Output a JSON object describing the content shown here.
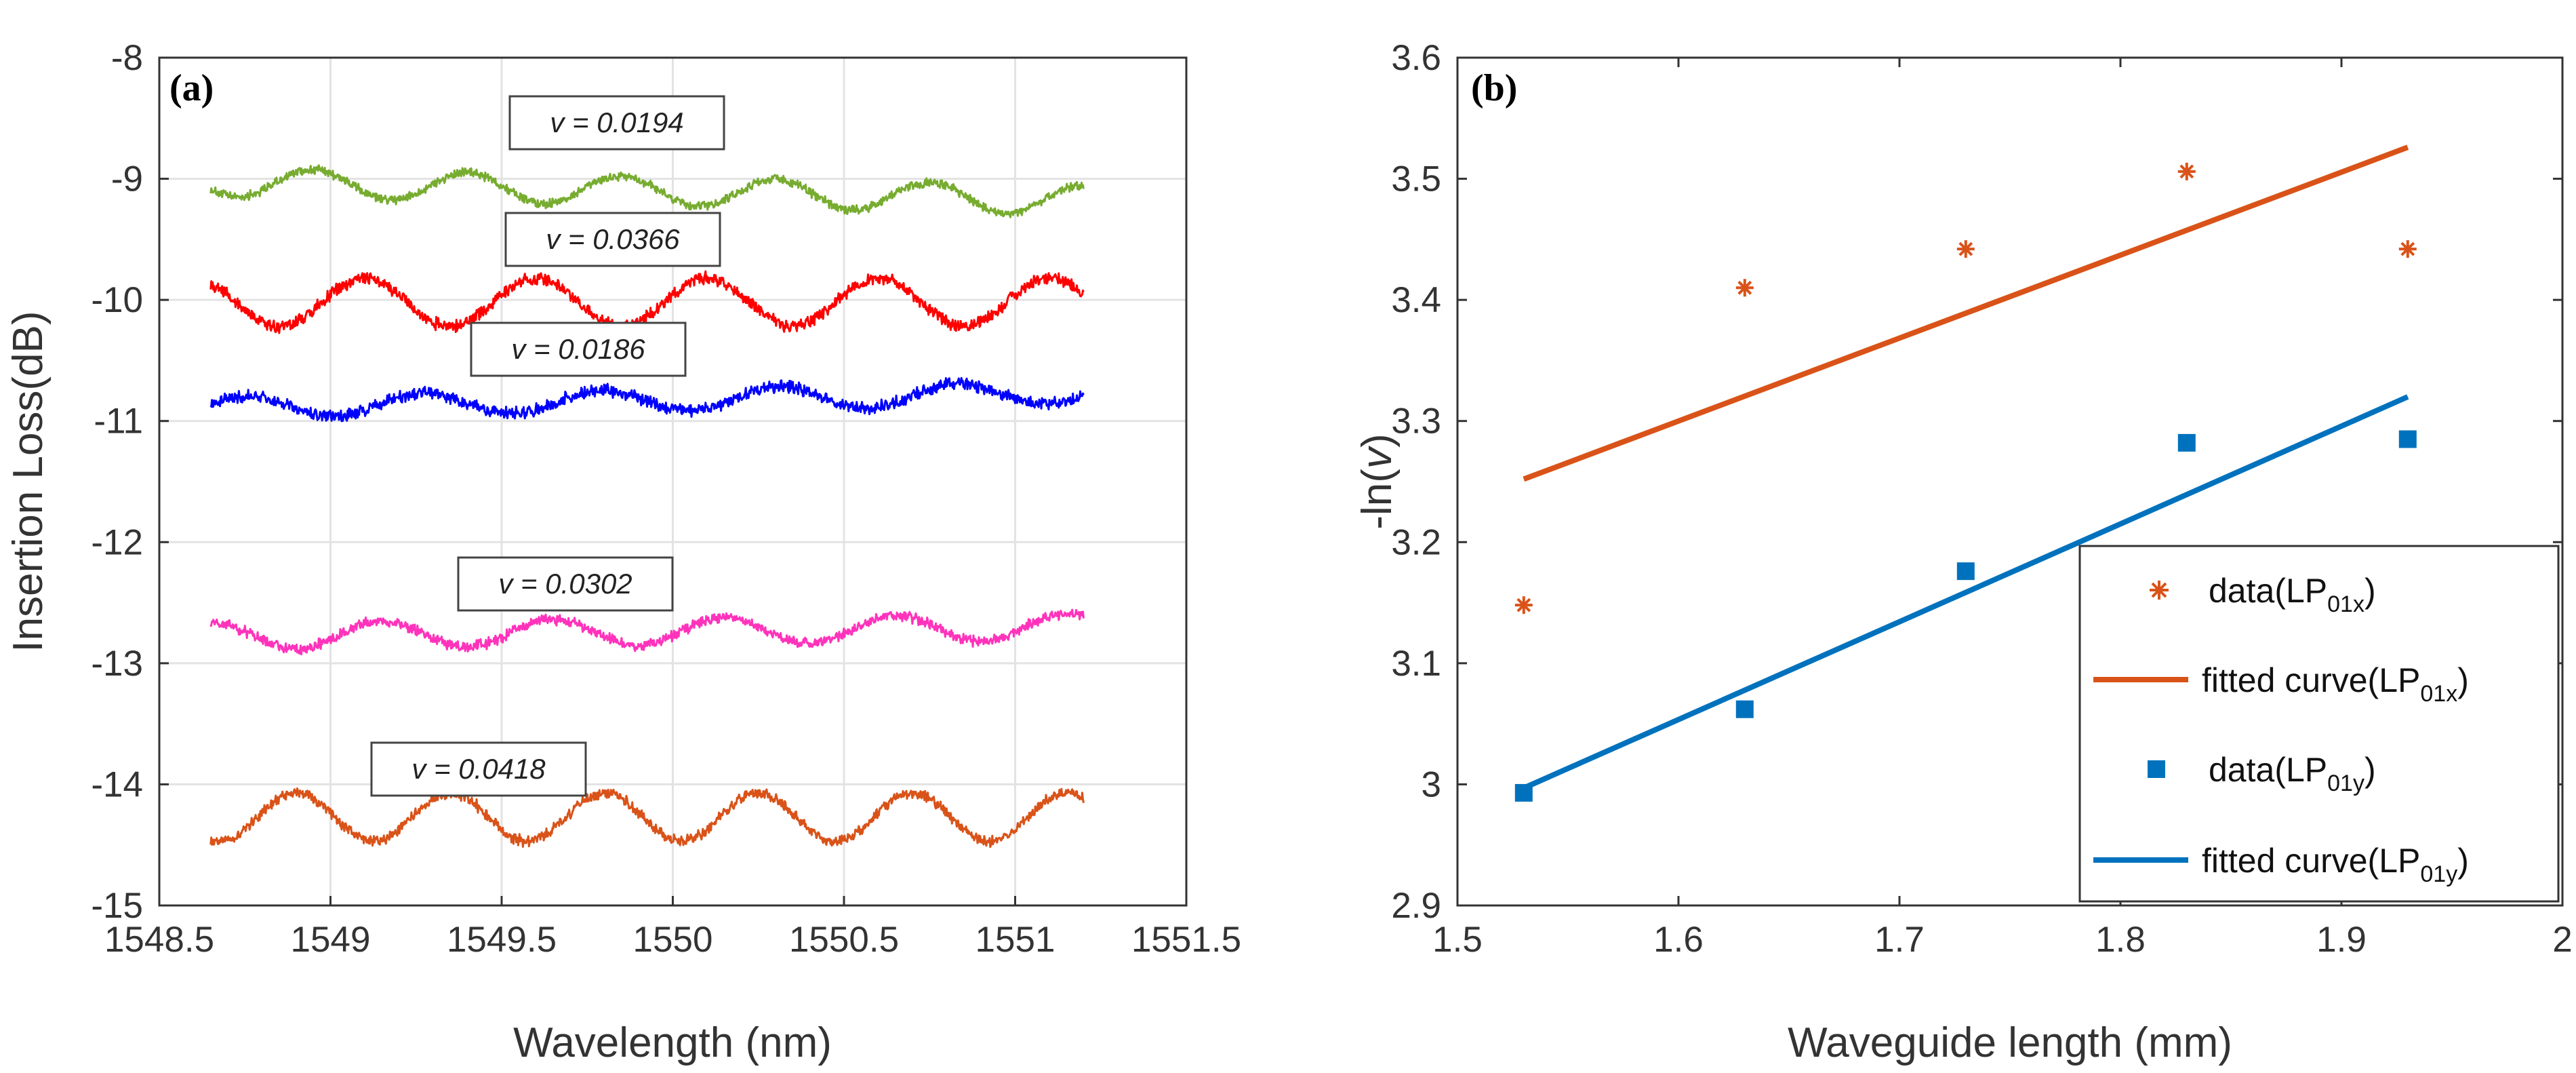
{
  "chart_data": [
    {
      "type": "line",
      "panel_label": "(a)",
      "xlabel": "Wavelength (nm)",
      "ylabel": "Insertion Loss(dB)",
      "xlim": [
        1548.5,
        1551.5
      ],
      "ylim": [
        -15,
        -8
      ],
      "xticks": [
        1548.5,
        1549,
        1549.5,
        1550,
        1550.5,
        1551,
        1551.5
      ],
      "xtick_labels": [
        "1548.5",
        "1549",
        "1549.5",
        "1550",
        "1550.5",
        "1551",
        "1551.5"
      ],
      "yticks": [
        -8,
        -9,
        -10,
        -11,
        -12,
        -13,
        -14,
        -15
      ],
      "ytick_labels": [
        "-8",
        "-9",
        "-10",
        "-11",
        "-12",
        "-13",
        "-14",
        "-15"
      ],
      "grid": true,
      "series": [
        {
          "name": "v = 0.0194",
          "color": "#77ac30",
          "x_range": [
            1548.65,
            1551.2
          ],
          "mean": -9.1,
          "slope_per_nm": -0.06,
          "amplitude": 0.12,
          "period_nm": 0.45,
          "phase_nm": 1548.95,
          "noise": 0.03,
          "label": "v = 0.0194"
        },
        {
          "name": "v = 0.0366",
          "color": "#ff0000",
          "x_range": [
            1548.65,
            1551.2
          ],
          "mean": -10.02,
          "slope_per_nm": 0.0,
          "amplitude": 0.2,
          "period_nm": 0.5,
          "phase_nm": 1548.6,
          "noise": 0.04,
          "label": "v = 0.0366"
        },
        {
          "name": "v = 0.0186",
          "color": "#0000ff",
          "x_range": [
            1548.65,
            1551.2
          ],
          "mean": -10.83,
          "slope_per_nm": 0.05,
          "amplitude": 0.09,
          "period_nm": 0.52,
          "phase_nm": 1548.75,
          "noise": 0.04,
          "label": "v = 0.0186"
        },
        {
          "name": "v = 0.0302",
          "color": "#ff33bb",
          "x_range": [
            1548.65,
            1551.2
          ],
          "mean": -12.74,
          "slope_per_nm": 0.03,
          "amplitude": 0.11,
          "period_nm": 0.5,
          "phase_nm": 1548.65,
          "noise": 0.035,
          "label": "v = 0.0302"
        },
        {
          "name": "v = 0.0418",
          "color": "#d95319",
          "x_range": [
            1548.65,
            1551.2
          ],
          "mean": -14.27,
          "slope_per_nm": 0.0,
          "amplitude": 0.2,
          "period_nm": 0.45,
          "phase_nm": 1548.9,
          "noise": 0.035,
          "label": "v = 0.0418"
        }
      ]
    },
    {
      "type": "scatter",
      "panel_label": "(b)",
      "xlabel": "Waveguide length (mm)",
      "ylabel": "-ln(",
      "ylabel_italic": "v",
      "ylabel_end": ")",
      "xlim": [
        1.5,
        2.0
      ],
      "ylim": [
        2.9,
        3.6
      ],
      "xticks": [
        1.5,
        1.6,
        1.7,
        1.8,
        1.9,
        2.0
      ],
      "xtick_labels": [
        "1.5",
        "1.6",
        "1.7",
        "1.8",
        "1.9",
        "2"
      ],
      "yticks": [
        2.9,
        3.0,
        3.1,
        3.2,
        3.3,
        3.4,
        3.5,
        3.6
      ],
      "ytick_labels": [
        "2.9",
        "3",
        "3.1",
        "3.2",
        "3.3",
        "3.4",
        "3.5",
        "3.6"
      ],
      "grid": false,
      "series": [
        {
          "name": "data(LP01x)",
          "kind": "scatter",
          "marker": "asterisk",
          "color": "#d95319",
          "x": [
            1.53,
            1.63,
            1.73,
            1.83,
            1.93
          ],
          "y": [
            3.148,
            3.41,
            3.442,
            3.506,
            3.442
          ]
        },
        {
          "name": "fitted curve(LP01x)",
          "kind": "line",
          "color": "#d95319",
          "x": [
            1.53,
            1.93
          ],
          "y": [
            3.252,
            3.526
          ]
        },
        {
          "name": "data(LP01y)",
          "kind": "scatter",
          "marker": "square",
          "color": "#0072bd",
          "x": [
            1.53,
            1.63,
            1.73,
            1.83,
            1.93
          ],
          "y": [
            2.993,
            3.062,
            3.176,
            3.282,
            3.285
          ]
        },
        {
          "name": "fitted curve(LP01y)",
          "kind": "line",
          "color": "#0072bd",
          "x": [
            1.53,
            1.93
          ],
          "y": [
            2.997,
            3.32
          ]
        }
      ],
      "legend": {
        "position": "bottom-right",
        "entries": [
          {
            "main": "data(LP",
            "sub": "01x",
            "end": ")"
          },
          {
            "main": "fitted curve(LP",
            "sub": "01x",
            "end": ")"
          },
          {
            "main": "data(LP",
            "sub": "01y",
            "end": ")"
          },
          {
            "main": "fitted curve(LP",
            "sub": "01y",
            "end": ")"
          }
        ]
      }
    }
  ]
}
